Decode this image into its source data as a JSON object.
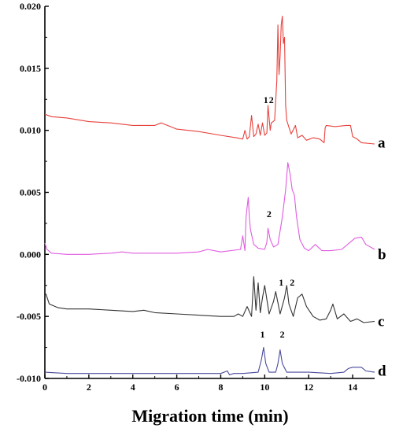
{
  "chart_data": {
    "type": "line",
    "xlabel": "Migration time (min)",
    "ylabel": "",
    "xlim": [
      0,
      15
    ],
    "ylim": [
      -0.01,
      0.02
    ],
    "x_ticks": [
      0,
      2,
      4,
      6,
      8,
      10,
      12,
      14
    ],
    "x_tick_labels": [
      "0",
      "2",
      "4",
      "6",
      "8",
      "10",
      "12",
      "14"
    ],
    "y_ticks": [
      -0.01,
      -0.005,
      0.0,
      0.005,
      0.01,
      0.015,
      0.02
    ],
    "y_tick_labels": [
      "-0.010",
      "-0.005",
      "0.000",
      "0.005",
      "0.010",
      "0.015",
      "0.020"
    ],
    "grid": false,
    "legend": "none",
    "series": [
      {
        "name": "a",
        "color": "#e8413c",
        "x": [
          0,
          0.3,
          1,
          2,
          3,
          4,
          5,
          5.3,
          6,
          7,
          8,
          8.7,
          9.0,
          9.1,
          9.2,
          9.3,
          9.4,
          9.5,
          9.6,
          9.7,
          9.8,
          9.9,
          10.0,
          10.1,
          10.15,
          10.25,
          10.3,
          10.45,
          10.55,
          10.6,
          10.65,
          10.7,
          10.75,
          10.8,
          10.85,
          10.9,
          10.95,
          11.0,
          11.2,
          11.4,
          11.5,
          11.7,
          11.9,
          12.2,
          12.5,
          12.7,
          12.75,
          12.8,
          13.2,
          13.7,
          13.9,
          14.0,
          14.2,
          14.4,
          15.0
        ],
        "y": [
          0.0113,
          0.0111,
          0.011,
          0.0107,
          0.0106,
          0.0104,
          0.0104,
          0.0106,
          0.0101,
          0.0099,
          0.0096,
          0.0094,
          0.0093,
          0.01,
          0.0093,
          0.0095,
          0.0112,
          0.0095,
          0.0097,
          0.0105,
          0.0096,
          0.0106,
          0.0096,
          0.0098,
          0.012,
          0.01,
          0.0106,
          0.0108,
          0.014,
          0.0185,
          0.0145,
          0.016,
          0.0185,
          0.0192,
          0.017,
          0.0175,
          0.012,
          0.0108,
          0.0097,
          0.0104,
          0.0094,
          0.0096,
          0.0092,
          0.0094,
          0.0093,
          0.009,
          0.0102,
          0.0104,
          0.0103,
          0.0104,
          0.0104,
          0.0095,
          0.0093,
          0.009,
          0.0089
        ]
      },
      {
        "name": "b",
        "color": "#e05ce0",
        "x": [
          0,
          0.1,
          0.3,
          1,
          2,
          3,
          3.5,
          4,
          5,
          6,
          7,
          7.4,
          8,
          8.9,
          9.0,
          9.1,
          9.15,
          9.25,
          9.3,
          9.35,
          9.5,
          9.7,
          10.0,
          10.1,
          10.15,
          10.25,
          10.4,
          10.6,
          10.8,
          10.95,
          11.05,
          11.15,
          11.25,
          11.35,
          11.45,
          11.6,
          11.8,
          12.0,
          12.3,
          12.6,
          13.0,
          13.5,
          13.9,
          14.1,
          14.4,
          14.6,
          15.0
        ],
        "y": [
          0.0009,
          0.0004,
          0.0001,
          0.0,
          0.0,
          0.0001,
          0.0002,
          0.0001,
          0.0001,
          0.0001,
          0.0002,
          0.0004,
          0.0002,
          0.0004,
          0.0015,
          0.0003,
          0.003,
          0.0046,
          0.003,
          0.002,
          0.0008,
          0.0005,
          0.0004,
          0.001,
          0.0021,
          0.0012,
          0.0006,
          0.0008,
          0.003,
          0.0052,
          0.0074,
          0.0065,
          0.0052,
          0.0048,
          0.003,
          0.0012,
          0.0005,
          0.0003,
          0.0008,
          0.0003,
          0.0003,
          0.0004,
          0.001,
          0.0013,
          0.0014,
          0.0008,
          0.0004
        ]
      },
      {
        "name": "c",
        "color": "#333333",
        "x": [
          0,
          0.05,
          0.2,
          0.6,
          1,
          2,
          3,
          4,
          4.5,
          5,
          6,
          7,
          8,
          8.6,
          8.8,
          9.0,
          9.2,
          9.4,
          9.5,
          9.6,
          9.7,
          9.8,
          9.9,
          10.0,
          10.2,
          10.4,
          10.5,
          10.7,
          10.9,
          11.0,
          11.1,
          11.3,
          11.5,
          11.7,
          11.9,
          12.2,
          12.5,
          12.8,
          13.0,
          13.1,
          13.3,
          13.6,
          13.9,
          14.2,
          14.5,
          15.0
        ],
        "y": [
          -0.0033,
          -0.0032,
          -0.004,
          -0.0043,
          -0.0044,
          -0.0044,
          -0.0045,
          -0.0046,
          -0.0045,
          -0.0047,
          -0.0048,
          -0.0049,
          -0.005,
          -0.005,
          -0.0048,
          -0.005,
          -0.0042,
          -0.005,
          -0.0018,
          -0.0045,
          -0.0023,
          -0.0047,
          -0.0035,
          -0.0025,
          -0.0048,
          -0.0038,
          -0.003,
          -0.0048,
          -0.0035,
          -0.0025,
          -0.004,
          -0.005,
          -0.0035,
          -0.0032,
          -0.0042,
          -0.005,
          -0.0053,
          -0.0052,
          -0.0045,
          -0.004,
          -0.0052,
          -0.0048,
          -0.0054,
          -0.0052,
          -0.0055,
          -0.0054
        ]
      },
      {
        "name": "d",
        "color": "#4a4a9c",
        "x": [
          0,
          1,
          2,
          4,
          6,
          8,
          8.3,
          8.4,
          8.6,
          9,
          9.7,
          9.85,
          9.95,
          10.05,
          10.2,
          10.5,
          10.6,
          10.7,
          10.8,
          11.0,
          12,
          13,
          13.6,
          13.8,
          14.0,
          14.4,
          14.6,
          15.0
        ],
        "y": [
          -0.0095,
          -0.0096,
          -0.0096,
          -0.0096,
          -0.0096,
          -0.0096,
          -0.0094,
          -0.0097,
          -0.0096,
          -0.0096,
          -0.0095,
          -0.0085,
          -0.0075,
          -0.0088,
          -0.0095,
          -0.0095,
          -0.0088,
          -0.0077,
          -0.0088,
          -0.0095,
          -0.0095,
          -0.0096,
          -0.0095,
          -0.0092,
          -0.0091,
          -0.0091,
          -0.0094,
          -0.0095
        ]
      }
    ],
    "annotations": [
      {
        "text": "1",
        "x": 10.05,
        "y": 0.0122
      },
      {
        "text": "2",
        "x": 10.3,
        "y": 0.0122
      },
      {
        "text": "2",
        "x": 10.2,
        "y": 0.003
      },
      {
        "text": "1",
        "x": 10.75,
        "y": -0.0025
      },
      {
        "text": "2",
        "x": 11.25,
        "y": -0.0025
      },
      {
        "text": "1",
        "x": 9.9,
        "y": -0.0067
      },
      {
        "text": "2",
        "x": 10.8,
        "y": -0.0067
      }
    ],
    "trace_labels": [
      {
        "text": "a",
        "y": 0.009
      },
      {
        "text": "b",
        "y": 0.0
      },
      {
        "text": "c",
        "y": -0.0054
      },
      {
        "text": "d",
        "y": -0.0094
      }
    ]
  }
}
